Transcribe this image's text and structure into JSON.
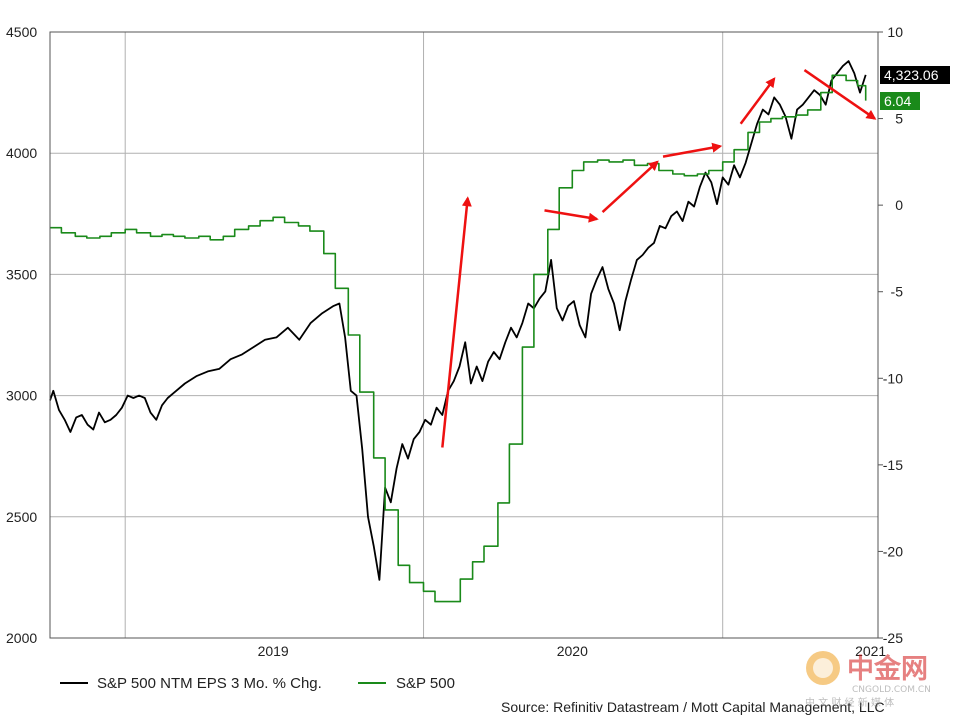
{
  "chart_data": {
    "type": "line",
    "x_tick_labels": [
      "2019",
      "2020",
      "2021"
    ],
    "x_range": [
      "2018-10-01",
      "2021-07-10"
    ],
    "left_axis": {
      "ylim": [
        2000,
        4500
      ],
      "ticks": [
        "2000",
        "2500",
        "3000",
        "3500",
        "4000",
        "4500"
      ]
    },
    "right_axis": {
      "ylim": [
        -25,
        10
      ],
      "ticks": [
        "-25",
        "-20",
        "-15",
        "-10",
        "-5",
        "0",
        "5",
        "10"
      ]
    },
    "grid": true,
    "legend_position": "bottom-left",
    "series": [
      {
        "name": "S&P 500 NTM EPS 3 Mo. % Chg.",
        "color": "#000000",
        "axis": "left",
        "last_value_label": "4,323.06",
        "points": [
          [
            "2018-10-01",
            2980
          ],
          [
            "2018-10-05",
            3020
          ],
          [
            "2018-10-12",
            2940
          ],
          [
            "2018-10-19",
            2900
          ],
          [
            "2018-10-26",
            2850
          ],
          [
            "2018-11-02",
            2910
          ],
          [
            "2018-11-09",
            2920
          ],
          [
            "2018-11-16",
            2880
          ],
          [
            "2018-11-23",
            2860
          ],
          [
            "2018-11-30",
            2930
          ],
          [
            "2018-12-07",
            2890
          ],
          [
            "2018-12-14",
            2900
          ],
          [
            "2018-12-21",
            2920
          ],
          [
            "2018-12-28",
            2950
          ],
          [
            "2019-01-04",
            3000
          ],
          [
            "2019-01-11",
            2990
          ],
          [
            "2019-01-18",
            3000
          ],
          [
            "2019-01-25",
            2990
          ],
          [
            "2019-02-01",
            2930
          ],
          [
            "2019-02-08",
            2900
          ],
          [
            "2019-02-15",
            2960
          ],
          [
            "2019-02-22",
            2990
          ],
          [
            "2019-03-01",
            3010
          ],
          [
            "2019-03-15",
            3050
          ],
          [
            "2019-03-29",
            3080
          ],
          [
            "2019-04-12",
            3100
          ],
          [
            "2019-04-26",
            3110
          ],
          [
            "2019-05-10",
            3150
          ],
          [
            "2019-05-24",
            3170
          ],
          [
            "2019-06-07",
            3200
          ],
          [
            "2019-06-21",
            3230
          ],
          [
            "2019-07-05",
            3240
          ],
          [
            "2019-07-19",
            3280
          ],
          [
            "2019-08-02",
            3230
          ],
          [
            "2019-08-16",
            3300
          ],
          [
            "2019-08-30",
            3340
          ],
          [
            "2019-09-13",
            3370
          ],
          [
            "2019-09-20",
            3380
          ],
          [
            "2019-09-27",
            3240
          ],
          [
            "2019-10-04",
            3020
          ],
          [
            "2019-10-11",
            3000
          ],
          [
            "2019-10-18",
            2780
          ],
          [
            "2019-10-25",
            2500
          ],
          [
            "2019-11-01",
            2380
          ],
          [
            "2019-11-08",
            2240
          ],
          [
            "2019-11-15",
            2620
          ],
          [
            "2019-11-22",
            2560
          ],
          [
            "2019-11-29",
            2700
          ],
          [
            "2019-12-06",
            2800
          ],
          [
            "2019-12-13",
            2740
          ],
          [
            "2019-12-20",
            2820
          ],
          [
            "2019-12-27",
            2850
          ],
          [
            "2020-01-03",
            2900
          ],
          [
            "2020-01-10",
            2880
          ],
          [
            "2020-01-17",
            2950
          ],
          [
            "2020-01-24",
            2920
          ],
          [
            "2020-01-31",
            3020
          ],
          [
            "2020-02-07",
            3060
          ],
          [
            "2020-02-14",
            3120
          ],
          [
            "2020-02-21",
            3220
          ],
          [
            "2020-02-28",
            3050
          ],
          [
            "2020-03-06",
            3120
          ],
          [
            "2020-03-13",
            3060
          ],
          [
            "2020-03-20",
            3140
          ],
          [
            "2020-03-27",
            3180
          ],
          [
            "2020-04-03",
            3150
          ],
          [
            "2020-04-10",
            3220
          ],
          [
            "2020-04-17",
            3280
          ],
          [
            "2020-04-24",
            3240
          ],
          [
            "2020-05-01",
            3300
          ],
          [
            "2020-05-08",
            3380
          ],
          [
            "2020-05-15",
            3360
          ],
          [
            "2020-05-22",
            3400
          ],
          [
            "2020-05-29",
            3430
          ],
          [
            "2020-06-05",
            3560
          ],
          [
            "2020-06-12",
            3360
          ],
          [
            "2020-06-19",
            3310
          ],
          [
            "2020-06-26",
            3370
          ],
          [
            "2020-07-03",
            3390
          ],
          [
            "2020-07-10",
            3290
          ],
          [
            "2020-07-17",
            3240
          ],
          [
            "2020-07-24",
            3420
          ],
          [
            "2020-07-31",
            3480
          ],
          [
            "2020-08-07",
            3530
          ],
          [
            "2020-08-14",
            3440
          ],
          [
            "2020-08-21",
            3380
          ],
          [
            "2020-08-28",
            3270
          ],
          [
            "2020-09-04",
            3390
          ],
          [
            "2020-09-11",
            3480
          ],
          [
            "2020-09-18",
            3560
          ],
          [
            "2020-09-25",
            3580
          ],
          [
            "2020-10-02",
            3610
          ],
          [
            "2020-10-09",
            3630
          ],
          [
            "2020-10-16",
            3700
          ],
          [
            "2020-10-23",
            3690
          ],
          [
            "2020-10-30",
            3740
          ],
          [
            "2020-11-06",
            3760
          ],
          [
            "2020-11-13",
            3720
          ],
          [
            "2020-11-20",
            3800
          ],
          [
            "2020-11-27",
            3780
          ],
          [
            "2020-12-04",
            3860
          ],
          [
            "2020-12-11",
            3920
          ],
          [
            "2020-12-18",
            3880
          ],
          [
            "2020-12-25",
            3790
          ],
          [
            "2021-01-01",
            3900
          ],
          [
            "2021-01-08",
            3870
          ],
          [
            "2021-01-15",
            3950
          ],
          [
            "2021-01-22",
            3900
          ],
          [
            "2021-01-29",
            3960
          ],
          [
            "2021-02-05",
            4040
          ],
          [
            "2021-02-12",
            4120
          ],
          [
            "2021-02-19",
            4180
          ],
          [
            "2021-02-26",
            4160
          ],
          [
            "2021-03-05",
            4230
          ],
          [
            "2021-03-12",
            4200
          ],
          [
            "2021-03-19",
            4150
          ],
          [
            "2021-03-26",
            4060
          ],
          [
            "2021-04-02",
            4180
          ],
          [
            "2021-04-09",
            4200
          ],
          [
            "2021-04-16",
            4230
          ],
          [
            "2021-04-23",
            4260
          ],
          [
            "2021-04-30",
            4240
          ],
          [
            "2021-05-07",
            4200
          ],
          [
            "2021-05-14",
            4300
          ],
          [
            "2021-05-21",
            4330
          ],
          [
            "2021-05-28",
            4360
          ],
          [
            "2021-06-04",
            4380
          ],
          [
            "2021-06-11",
            4330
          ],
          [
            "2021-06-18",
            4250
          ],
          [
            "2021-06-25",
            4323
          ]
        ]
      },
      {
        "name": "S&P 500",
        "color": "#1a8a1a",
        "axis": "right",
        "last_value_label": "6.04",
        "points": [
          [
            "2018-10-01",
            -1.3
          ],
          [
            "2018-10-15",
            -1.6
          ],
          [
            "2018-11-01",
            -1.8
          ],
          [
            "2018-11-15",
            -1.9
          ],
          [
            "2018-12-01",
            -1.8
          ],
          [
            "2018-12-15",
            -1.6
          ],
          [
            "2019-01-01",
            -1.4
          ],
          [
            "2019-01-15",
            -1.6
          ],
          [
            "2019-02-01",
            -1.8
          ],
          [
            "2019-02-15",
            -1.7
          ],
          [
            "2019-03-01",
            -1.8
          ],
          [
            "2019-03-15",
            -1.9
          ],
          [
            "2019-04-01",
            -1.8
          ],
          [
            "2019-04-15",
            -2.0
          ],
          [
            "2019-05-01",
            -1.8
          ],
          [
            "2019-05-15",
            -1.4
          ],
          [
            "2019-06-01",
            -1.2
          ],
          [
            "2019-06-15",
            -0.9
          ],
          [
            "2019-07-01",
            -0.7
          ],
          [
            "2019-07-15",
            -1.0
          ],
          [
            "2019-08-01",
            -1.2
          ],
          [
            "2019-08-15",
            -1.5
          ],
          [
            "2019-09-01",
            -2.8
          ],
          [
            "2019-09-15",
            -4.8
          ],
          [
            "2019-10-01",
            -7.5
          ],
          [
            "2019-10-15",
            -10.8
          ],
          [
            "2019-11-01",
            -14.6
          ],
          [
            "2019-11-15",
            -17.6
          ],
          [
            "2019-12-01",
            -20.8
          ],
          [
            "2019-12-15",
            -21.8
          ],
          [
            "2020-01-01",
            -22.3
          ],
          [
            "2020-01-15",
            -22.9
          ],
          [
            "2020-02-01",
            -22.9
          ],
          [
            "2020-02-15",
            -21.6
          ],
          [
            "2020-03-01",
            -20.6
          ],
          [
            "2020-03-15",
            -19.7
          ],
          [
            "2020-04-01",
            -17.2
          ],
          [
            "2020-04-15",
            -13.8
          ],
          [
            "2020-05-01",
            -8.2
          ],
          [
            "2020-05-15",
            -4.0
          ],
          [
            "2020-06-01",
            -1.4
          ],
          [
            "2020-06-15",
            1.0
          ],
          [
            "2020-07-01",
            2.0
          ],
          [
            "2020-07-15",
            2.5
          ],
          [
            "2020-08-01",
            2.6
          ],
          [
            "2020-08-15",
            2.5
          ],
          [
            "2020-09-01",
            2.6
          ],
          [
            "2020-09-15",
            2.3
          ],
          [
            "2020-10-01",
            2.4
          ],
          [
            "2020-10-15",
            2.0
          ],
          [
            "2020-11-01",
            1.8
          ],
          [
            "2020-11-15",
            1.7
          ],
          [
            "2020-12-01",
            1.8
          ],
          [
            "2020-12-15",
            2.0
          ],
          [
            "2021-01-01",
            2.5
          ],
          [
            "2021-01-15",
            3.2
          ],
          [
            "2021-02-01",
            4.2
          ],
          [
            "2021-02-15",
            4.8
          ],
          [
            "2021-03-01",
            5.0
          ],
          [
            "2021-03-15",
            5.1
          ],
          [
            "2021-04-01",
            5.2
          ],
          [
            "2021-04-15",
            5.5
          ],
          [
            "2021-05-01",
            6.5
          ],
          [
            "2021-05-15",
            7.5
          ],
          [
            "2021-06-01",
            7.2
          ],
          [
            "2021-06-15",
            6.9
          ],
          [
            "2021-06-25",
            6.04
          ]
        ]
      }
    ]
  },
  "legend": [
    {
      "label": "S&P 500 NTM EPS 3 Mo. % Chg.",
      "color": "#000000"
    },
    {
      "label": "S&P 500",
      "color": "#1a8a1a"
    }
  ],
  "annotations": {
    "arrow_color": "#ee1111",
    "arrows": [
      {
        "from": [
          "2020-01-24",
          -14
        ],
        "to": [
          "2020-02-24",
          0.4
        ]
      },
      {
        "from": [
          "2020-05-28",
          -0.3
        ],
        "to": [
          "2020-07-31",
          -0.8
        ]
      },
      {
        "from": [
          "2020-08-07",
          -0.4
        ],
        "to": [
          "2020-10-13",
          2.5
        ]
      },
      {
        "from": [
          "2020-10-20",
          2.8
        ],
        "to": [
          "2020-12-29",
          3.4
        ]
      },
      {
        "from": [
          "2021-01-23",
          4.7
        ],
        "to": [
          "2021-03-05",
          7.3
        ]
      },
      {
        "from": [
          "2021-04-11",
          7.8
        ],
        "to": [
          "2021-07-06",
          5.0
        ]
      }
    ]
  },
  "source": "Source: Refinitiv Datastream / Mott Capital Management, LLC",
  "watermark": {
    "brand_cn": "中金网",
    "domain": "CNGOLD.COM.CN",
    "tagline_cn": "中 文 财 经 新 媒 体"
  }
}
